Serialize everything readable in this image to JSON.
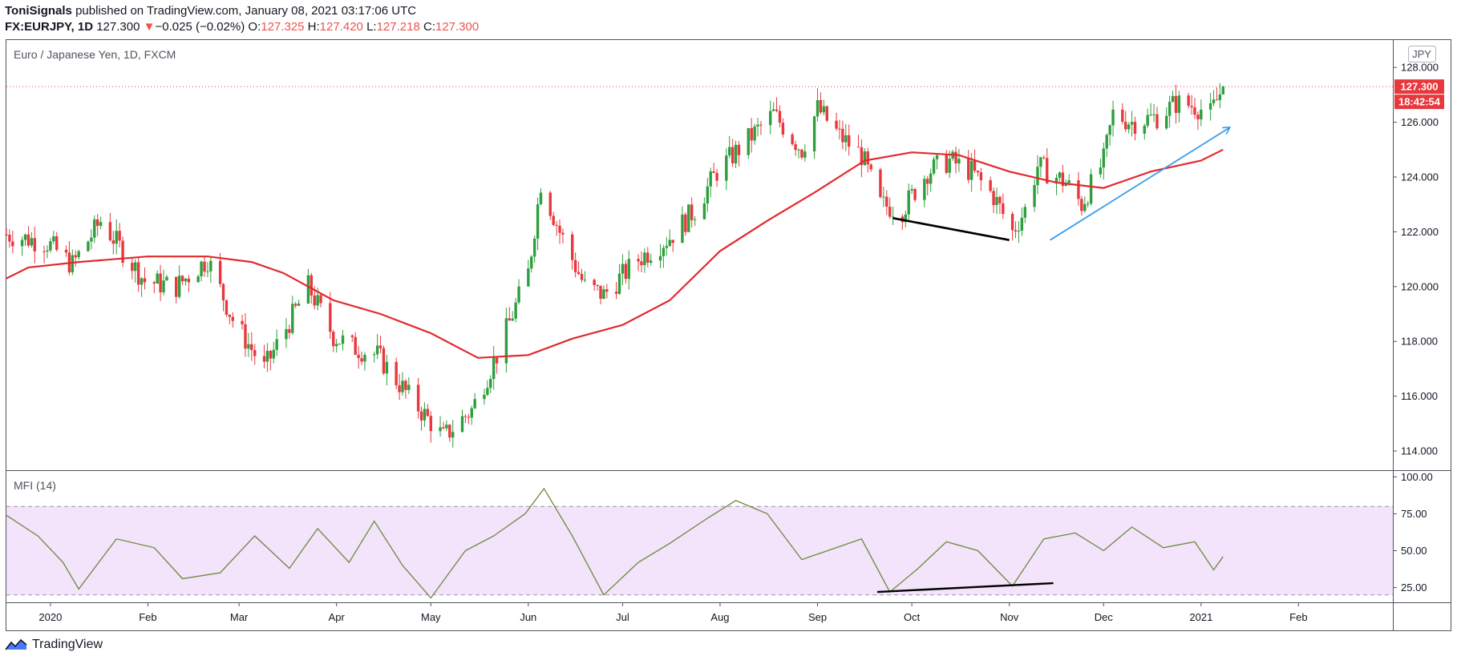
{
  "header": {
    "author": "ToniSignals",
    "published_text": "published on TradingView.com, January 08, 2021 03:17:06 UTC",
    "symbol": "FX:EURJPY, 1D",
    "last": "127.300",
    "change_arrow": "▼",
    "change": "−0.025 (−0.02%)",
    "o_label": "O:",
    "o": "127.325",
    "h_label": "H:",
    "h": "127.420",
    "l_label": "L:",
    "l": "127.218",
    "c_label": "C:",
    "c": "127.300"
  },
  "main_pane": {
    "title": "Euro / Japanese Yen, 1D, FXCM",
    "currency_badge": "JPY",
    "price_badge": "127.300",
    "countdown_badge": "18:42:54",
    "y_ticks": [
      "128.000",
      "126.000",
      "124.000",
      "122.000",
      "120.000",
      "118.000",
      "116.000",
      "114.000"
    ]
  },
  "mfi_pane": {
    "title": "MFI (14)",
    "y_ticks": [
      "100.00",
      "75.00",
      "50.00",
      "25.00"
    ]
  },
  "x_ticks": [
    "2020",
    "Feb",
    "Mar",
    "Apr",
    "May",
    "Jun",
    "Jul",
    "Aug",
    "Sep",
    "Oct",
    "Nov",
    "Dec",
    "2021",
    "Feb"
  ],
  "footer": {
    "brand": "TradingView"
  },
  "colors": {
    "up": "#26a69a",
    "up_candle": "#2e9e3e",
    "down_candle": "#e8383d",
    "ma": "#e3282d",
    "mfi": "#6b8a3a",
    "mfi_band": "#f3e3fb",
    "arrow": "#3d9be9"
  },
  "chart_data": [
    {
      "type": "candlestick",
      "title": "Euro / Japanese Yen, 1D, FXCM",
      "ylim": [
        113.3,
        129.0
      ],
      "last_price": 127.3,
      "anchors": [
        {
          "x": "2019-12-18",
          "y": 121.9
        },
        {
          "x": "2019-12-31",
          "y": 121.6
        },
        {
          "x": "2020-01-08",
          "y": 120.8
        },
        {
          "x": "2020-01-17",
          "y": 122.4
        },
        {
          "x": "2020-01-31",
          "y": 120.2
        },
        {
          "x": "2020-02-10",
          "y": 120.0
        },
        {
          "x": "2020-02-20",
          "y": 121.0
        },
        {
          "x": "2020-02-28",
          "y": 118.8
        },
        {
          "x": "2020-03-09",
          "y": 117.0
        },
        {
          "x": "2020-03-16",
          "y": 118.5
        },
        {
          "x": "2020-03-23",
          "y": 120.0
        },
        {
          "x": "2020-03-31",
          "y": 118.2
        },
        {
          "x": "2020-04-06",
          "y": 117.8
        },
        {
          "x": "2020-04-14",
          "y": 117.5
        },
        {
          "x": "2020-04-24",
          "y": 116.0
        },
        {
          "x": "2020-05-05",
          "y": 114.5
        },
        {
          "x": "2020-05-14",
          "y": 115.5
        },
        {
          "x": "2020-05-22",
          "y": 117.5
        },
        {
          "x": "2020-06-01",
          "y": 120.5
        },
        {
          "x": "2020-06-05",
          "y": 123.8
        },
        {
          "x": "2020-06-11",
          "y": 122.0
        },
        {
          "x": "2020-06-19",
          "y": 120.0
        },
        {
          "x": "2020-06-25",
          "y": 119.7
        },
        {
          "x": "2020-07-06",
          "y": 121.0
        },
        {
          "x": "2020-07-16",
          "y": 121.8
        },
        {
          "x": "2020-07-24",
          "y": 122.8
        },
        {
          "x": "2020-07-31",
          "y": 124.2
        },
        {
          "x": "2020-08-11",
          "y": 125.5
        },
        {
          "x": "2020-08-18",
          "y": 126.3
        },
        {
          "x": "2020-08-27",
          "y": 125.0
        },
        {
          "x": "2020-09-01",
          "y": 126.5
        },
        {
          "x": "2020-09-08",
          "y": 125.5
        },
        {
          "x": "2020-09-15",
          "y": 124.8
        },
        {
          "x": "2020-09-21",
          "y": 123.0
        },
        {
          "x": "2020-09-28",
          "y": 122.8
        },
        {
          "x": "2020-10-06",
          "y": 124.2
        },
        {
          "x": "2020-10-13",
          "y": 124.6
        },
        {
          "x": "2020-10-20",
          "y": 124.2
        },
        {
          "x": "2020-10-27",
          "y": 123.3
        },
        {
          "x": "2020-11-02",
          "y": 122.0
        },
        {
          "x": "2020-11-06",
          "y": 122.8
        },
        {
          "x": "2020-11-10",
          "y": 124.4
        },
        {
          "x": "2020-11-19",
          "y": 123.8
        },
        {
          "x": "2020-11-24",
          "y": 123.0
        },
        {
          "x": "2020-12-01",
          "y": 124.6
        },
        {
          "x": "2020-12-04",
          "y": 126.3
        },
        {
          "x": "2020-12-10",
          "y": 126.0
        },
        {
          "x": "2020-12-18",
          "y": 126.2
        },
        {
          "x": "2020-12-24",
          "y": 126.7
        },
        {
          "x": "2020-12-30",
          "y": 126.6
        },
        {
          "x": "2021-01-04",
          "y": 126.3
        },
        {
          "x": "2021-01-08",
          "y": 127.3
        }
      ],
      "moving_average": [
        {
          "x": "2019-12-18",
          "y": 120.3
        },
        {
          "x": "2019-12-25",
          "y": 120.7
        },
        {
          "x": "2020-01-10",
          "y": 120.9
        },
        {
          "x": "2020-02-01",
          "y": 121.1
        },
        {
          "x": "2020-02-20",
          "y": 121.1
        },
        {
          "x": "2020-03-05",
          "y": 120.9
        },
        {
          "x": "2020-03-15",
          "y": 120.5
        },
        {
          "x": "2020-03-31",
          "y": 119.5
        },
        {
          "x": "2020-04-15",
          "y": 119.0
        },
        {
          "x": "2020-05-01",
          "y": 118.3
        },
        {
          "x": "2020-05-16",
          "y": 117.4
        },
        {
          "x": "2020-06-01",
          "y": 117.5
        },
        {
          "x": "2020-06-15",
          "y": 118.1
        },
        {
          "x": "2020-07-01",
          "y": 118.6
        },
        {
          "x": "2020-07-16",
          "y": 119.5
        },
        {
          "x": "2020-08-01",
          "y": 121.3
        },
        {
          "x": "2020-08-16",
          "y": 122.4
        },
        {
          "x": "2020-09-01",
          "y": 123.5
        },
        {
          "x": "2020-09-16",
          "y": 124.6
        },
        {
          "x": "2020-10-01",
          "y": 124.9
        },
        {
          "x": "2020-10-16",
          "y": 124.8
        },
        {
          "x": "2020-11-01",
          "y": 124.2
        },
        {
          "x": "2020-11-16",
          "y": 123.8
        },
        {
          "x": "2020-12-01",
          "y": 123.6
        },
        {
          "x": "2020-12-16",
          "y": 124.2
        },
        {
          "x": "2021-01-01",
          "y": 124.6
        },
        {
          "x": "2021-01-08",
          "y": 125.0
        }
      ],
      "annotations": [
        {
          "type": "trendline",
          "color": "#000000",
          "from": {
            "x": "2020-09-25",
            "y": 122.5
          },
          "to": {
            "x": "2020-11-01",
            "y": 121.7
          }
        },
        {
          "type": "arrow",
          "color": "#3d9be9",
          "from": {
            "x": "2020-11-14",
            "y": 121.7
          },
          "to": {
            "x": "2021-01-10",
            "y": 125.8
          }
        }
      ]
    },
    {
      "type": "line",
      "title": "MFI (14)",
      "ylim": [
        15,
        104
      ],
      "band": [
        20,
        80
      ],
      "series": [
        {
          "values": [
            {
              "x": "2019-12-18",
              "y": 74
            },
            {
              "x": "2019-12-28",
              "y": 60
            },
            {
              "x": "2020-01-05",
              "y": 42
            },
            {
              "x": "2020-01-10",
              "y": 24
            },
            {
              "x": "2020-01-22",
              "y": 58
            },
            {
              "x": "2020-02-03",
              "y": 52
            },
            {
              "x": "2020-02-12",
              "y": 31
            },
            {
              "x": "2020-02-24",
              "y": 35
            },
            {
              "x": "2020-03-06",
              "y": 60
            },
            {
              "x": "2020-03-17",
              "y": 38
            },
            {
              "x": "2020-03-26",
              "y": 65
            },
            {
              "x": "2020-04-05",
              "y": 42
            },
            {
              "x": "2020-04-13",
              "y": 70
            },
            {
              "x": "2020-04-22",
              "y": 40
            },
            {
              "x": "2020-05-01",
              "y": 18
            },
            {
              "x": "2020-05-12",
              "y": 50
            },
            {
              "x": "2020-05-21",
              "y": 60
            },
            {
              "x": "2020-05-31",
              "y": 75
            },
            {
              "x": "2020-06-06",
              "y": 92
            },
            {
              "x": "2020-06-15",
              "y": 60
            },
            {
              "x": "2020-06-25",
              "y": 20
            },
            {
              "x": "2020-07-06",
              "y": 42
            },
            {
              "x": "2020-07-16",
              "y": 55
            },
            {
              "x": "2020-07-28",
              "y": 72
            },
            {
              "x": "2020-08-06",
              "y": 84
            },
            {
              "x": "2020-08-16",
              "y": 75
            },
            {
              "x": "2020-08-27",
              "y": 44
            },
            {
              "x": "2020-09-07",
              "y": 52
            },
            {
              "x": "2020-09-15",
              "y": 58
            },
            {
              "x": "2020-09-24",
              "y": 22
            },
            {
              "x": "2020-10-03",
              "y": 38
            },
            {
              "x": "2020-10-12",
              "y": 56
            },
            {
              "x": "2020-10-22",
              "y": 50
            },
            {
              "x": "2020-11-02",
              "y": 26
            },
            {
              "x": "2020-11-12",
              "y": 58
            },
            {
              "x": "2020-11-22",
              "y": 62
            },
            {
              "x": "2020-12-01",
              "y": 50
            },
            {
              "x": "2020-12-10",
              "y": 66
            },
            {
              "x": "2020-12-20",
              "y": 52
            },
            {
              "x": "2020-12-30",
              "y": 56
            },
            {
              "x": "2021-01-05",
              "y": 37
            },
            {
              "x": "2021-01-08",
              "y": 46
            }
          ]
        }
      ],
      "annotations": [
        {
          "type": "trendline",
          "color": "#000000",
          "from": {
            "x": "2020-09-20",
            "y": 22
          },
          "to": {
            "x": "2020-11-15",
            "y": 28
          }
        }
      ]
    }
  ]
}
